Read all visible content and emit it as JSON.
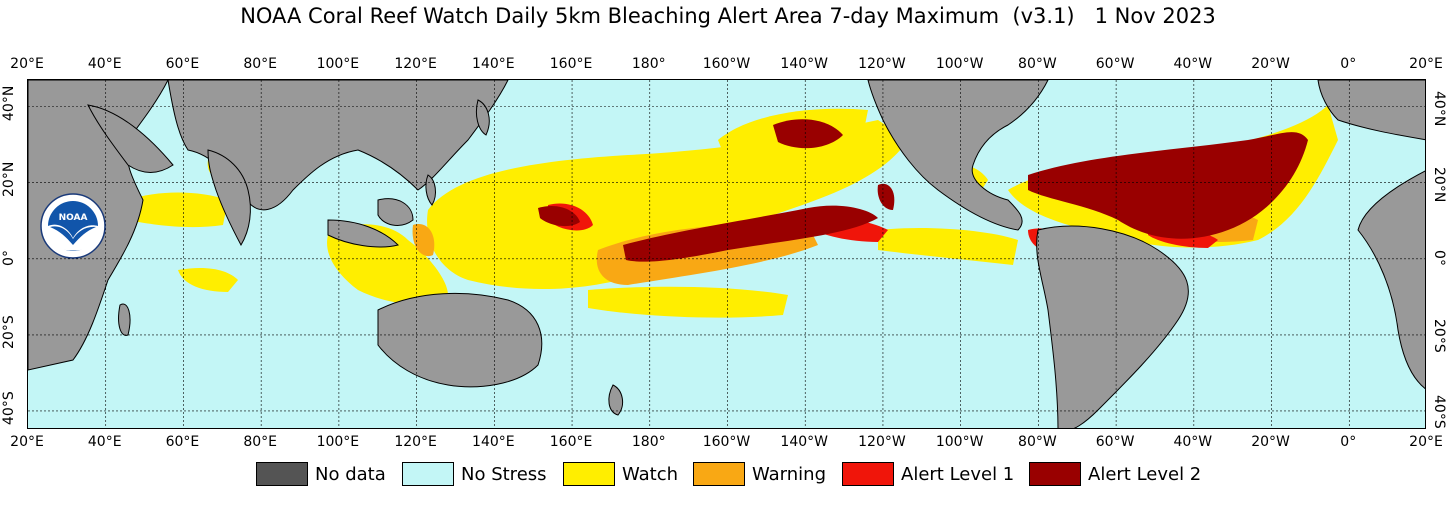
{
  "title": "NOAA Coral Reef Watch Daily 5km Bleaching Alert Area 7-day Maximum  (v3.1)   1 Nov 2023",
  "map": {
    "lon_labels": [
      "20°E",
      "40°E",
      "60°E",
      "80°E",
      "100°E",
      "120°E",
      "140°E",
      "160°E",
      "180°",
      "160°W",
      "140°W",
      "120°W",
      "100°W",
      "80°W",
      "60°W",
      "40°W",
      "20°W",
      "0°",
      "20°E"
    ],
    "lat_labels": [
      "40°N",
      "20°N",
      "0°",
      "20°S",
      "40°S"
    ],
    "colors": {
      "no_data": "#545454",
      "no_stress": "#c3f6f6",
      "watch": "#ffee00",
      "warning": "#f9a814",
      "alert_level_1": "#f0150a",
      "alert_level_2": "#990000",
      "land": "#999999"
    }
  },
  "legend": [
    {
      "key": "no_data",
      "label": "No data",
      "color": "#545454"
    },
    {
      "key": "no_stress",
      "label": "No Stress",
      "color": "#c3f6f6"
    },
    {
      "key": "watch",
      "label": "Watch",
      "color": "#ffee00"
    },
    {
      "key": "warning",
      "label": "Warning",
      "color": "#f9a814"
    },
    {
      "key": "alert_level_1",
      "label": "Alert Level 1",
      "color": "#f0150a"
    },
    {
      "key": "alert_level_2",
      "label": "Alert Level 2",
      "color": "#990000"
    }
  ],
  "logo": {
    "text": "NOAA"
  }
}
